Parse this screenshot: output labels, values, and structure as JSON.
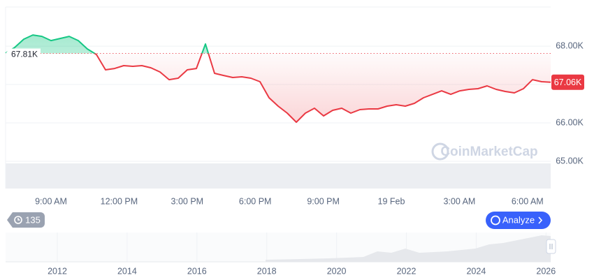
{
  "chart_data": {
    "type": "line",
    "values": [
      67818,
      67964,
      68182,
      68291,
      68255,
      68145,
      68200,
      68255,
      68145,
      67927,
      67782,
      67382,
      67418,
      67491,
      67473,
      67491,
      67436,
      67327,
      67127,
      67164,
      67382,
      67418,
      68055,
      67291,
      67236,
      67182,
      67200,
      67164,
      67073,
      66655,
      66436,
      66255,
      66018,
      66255,
      66382,
      66182,
      66327,
      66382,
      66255,
      66345,
      66364,
      66364,
      66436,
      66473,
      66436,
      66509,
      66655,
      66745,
      66836,
      66745,
      66836,
      66873,
      66891,
      66964,
      66873,
      66818,
      66782,
      66891,
      67127,
      67073,
      67060
    ],
    "colors": {
      "up": "#16c784",
      "down": "#ea3943"
    },
    "x_axis_labels": [
      "9:00 AM",
      "12:00 PM",
      "3:00 PM",
      "6:00 PM",
      "9:00 PM",
      "19 Feb",
      "3:00 AM",
      "6:00 AM"
    ],
    "ylim": [
      64290,
      69020
    ],
    "yticks": [
      {
        "value": 65000,
        "label": "65.00K"
      },
      {
        "value": 66000,
        "label": "66.00K"
      },
      {
        "value": 67000,
        "label": "67.00K"
      },
      {
        "value": 68000,
        "label": "68.00K"
      }
    ],
    "grid": true,
    "reference": {
      "value": 67810,
      "label": "67.81K"
    },
    "last_price": {
      "value": 67060,
      "label": "67.06K"
    },
    "watermark": "CoinMarketCap",
    "events_count": 135,
    "analyze_button": "Analyze",
    "navigator_ticks": [
      2012,
      2014,
      2016,
      2018,
      2020,
      2022,
      2024,
      2026
    ]
  }
}
